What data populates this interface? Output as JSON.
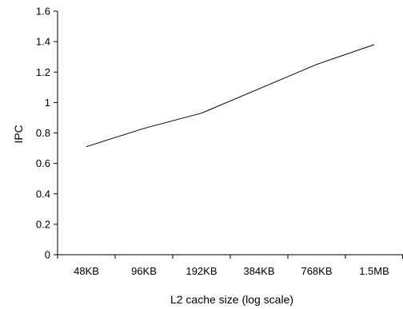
{
  "chart_data": {
    "type": "line",
    "title": "",
    "xlabel": "L2 cache size (log scale)",
    "ylabel": "IPC",
    "x_scale": "log",
    "categories": [
      "48KB",
      "96KB",
      "192KB",
      "384KB",
      "768KB",
      "1.5MB"
    ],
    "series": [
      {
        "values": [
          0.71,
          0.83,
          0.93,
          1.09,
          1.25,
          1.38
        ]
      }
    ],
    "ylim": [
      0,
      1.6
    ],
    "yticks": [
      0,
      0.2,
      0.4,
      0.6,
      0.8,
      1,
      1.2,
      1.4,
      1.6
    ],
    "ytick_labels": [
      "0",
      "0.2",
      "0.4",
      "0.6",
      "0.8",
      "1",
      "1.2",
      "1.4",
      "1.6"
    ],
    "grid": false,
    "legend": "none",
    "line_color": "#000000"
  }
}
